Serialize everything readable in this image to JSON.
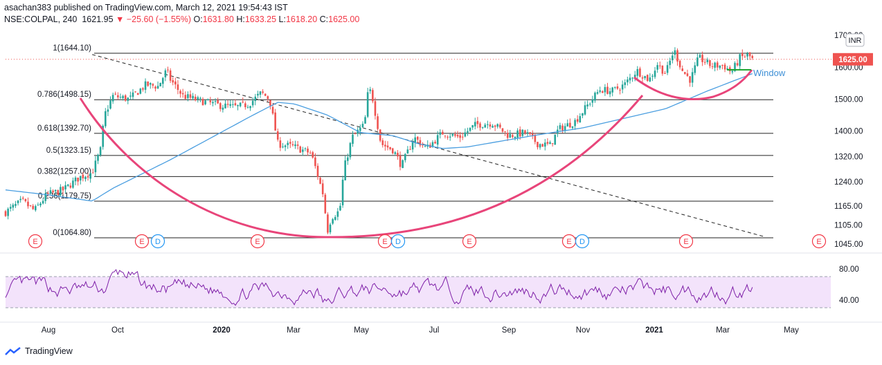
{
  "header": {
    "line1": "asachan383 published on TradingView.com, March 12, 2021 19:54:43 IST",
    "symbol": "NSE:COLPAL, 240",
    "last": "1621.95",
    "change": "−25.60 (−1.55%)",
    "o_label": "O:",
    "o_value": "1631.80",
    "h_label": "H:",
    "h_value": "1633.25",
    "l_label": "L:",
    "l_value": "1618.20",
    "c_label": "C:",
    "c_value": "1625.00"
  },
  "currency": "INR",
  "price_badge": "1625.00",
  "annotation": "Window",
  "footer": {
    "brand": "TradingView"
  },
  "colors": {
    "candle_up": "#26a69a",
    "candle_down": "#ef5350",
    "ma": "#4a9ee0",
    "arc": "#e8457a",
    "rsi": "#7e1fa8",
    "rsi_band": "#f3e3fb",
    "window": "#1fa531"
  },
  "chart_data": {
    "type": "candlestick",
    "y_axis": {
      "ticks": [
        "1700.00",
        "1600.00",
        "1500.00",
        "1400.00",
        "1320.00",
        "1240.00",
        "1165.00",
        "1105.00",
        "1045.00"
      ],
      "range": [
        1030,
        1720
      ]
    },
    "x_axis": {
      "ticks": [
        "Aug",
        "Oct",
        "2020",
        "Mar",
        "May",
        "Jul",
        "Sep",
        "Nov",
        "2021",
        "Mar",
        "May"
      ]
    },
    "fib_levels": [
      {
        "label": "1(1644.10)",
        "price": 1644.1
      },
      {
        "label": "0.786(1498.15)",
        "price": 1498.15
      },
      {
        "label": "0.618(1392.70)",
        "price": 1392.7
      },
      {
        "label": "0.5(1323.15)",
        "price": 1323.15
      },
      {
        "label": "0.382(1257.00)",
        "price": 1257.0
      },
      {
        "label": "0.236(1179.75)",
        "price": 1179.75
      },
      {
        "label": "0(1064.80)",
        "price": 1064.8
      }
    ],
    "price_path": [
      [
        0,
        1145
      ],
      [
        0.02,
        1180
      ],
      [
        0.035,
        1150
      ],
      [
        0.05,
        1200
      ],
      [
        0.07,
        1215
      ],
      [
        0.09,
        1255
      ],
      [
        0.105,
        1270
      ],
      [
        0.115,
        1340
      ],
      [
        0.12,
        1450
      ],
      [
        0.13,
        1510
      ],
      [
        0.15,
        1500
      ],
      [
        0.17,
        1545
      ],
      [
        0.185,
        1540
      ],
      [
        0.195,
        1590
      ],
      [
        0.2,
        1560
      ],
      [
        0.215,
        1510
      ],
      [
        0.235,
        1495
      ],
      [
        0.26,
        1480
      ],
      [
        0.28,
        1475
      ],
      [
        0.295,
        1485
      ],
      [
        0.31,
        1520
      ],
      [
        0.32,
        1500
      ],
      [
        0.33,
        1360
      ],
      [
        0.35,
        1350
      ],
      [
        0.37,
        1330
      ],
      [
        0.375,
        1290
      ],
      [
        0.385,
        1200
      ],
      [
        0.39,
        1085
      ],
      [
        0.395,
        1130
      ],
      [
        0.405,
        1150
      ],
      [
        0.41,
        1280
      ],
      [
        0.42,
        1380
      ],
      [
        0.435,
        1420
      ],
      [
        0.44,
        1540
      ],
      [
        0.445,
        1500
      ],
      [
        0.455,
        1360
      ],
      [
        0.47,
        1340
      ],
      [
        0.48,
        1290
      ],
      [
        0.495,
        1380
      ],
      [
        0.51,
        1345
      ],
      [
        0.53,
        1395
      ],
      [
        0.55,
        1380
      ],
      [
        0.57,
        1420
      ],
      [
        0.59,
        1425
      ],
      [
        0.61,
        1385
      ],
      [
        0.63,
        1395
      ],
      [
        0.645,
        1360
      ],
      [
        0.66,
        1355
      ],
      [
        0.67,
        1405
      ],
      [
        0.69,
        1430
      ],
      [
        0.705,
        1480
      ],
      [
        0.72,
        1530
      ],
      [
        0.735,
        1525
      ],
      [
        0.75,
        1545
      ],
      [
        0.765,
        1590
      ],
      [
        0.78,
        1560
      ],
      [
        0.79,
        1610
      ],
      [
        0.8,
        1580
      ],
      [
        0.81,
        1655
      ],
      [
        0.82,
        1590
      ],
      [
        0.83,
        1560
      ],
      [
        0.84,
        1630
      ],
      [
        0.855,
        1605
      ],
      [
        0.87,
        1605
      ],
      [
        0.88,
        1585
      ],
      [
        0.89,
        1630
      ],
      [
        0.9,
        1638
      ],
      [
        0.905,
        1625
      ]
    ],
    "ma_path": [
      [
        0,
        1215
      ],
      [
        0.05,
        1200
      ],
      [
        0.105,
        1180
      ],
      [
        0.13,
        1220
      ],
      [
        0.2,
        1310
      ],
      [
        0.25,
        1380
      ],
      [
        0.3,
        1450
      ],
      [
        0.33,
        1490
      ],
      [
        0.35,
        1485
      ],
      [
        0.39,
        1450
      ],
      [
        0.43,
        1395
      ],
      [
        0.47,
        1385
      ],
      [
        0.5,
        1360
      ],
      [
        0.53,
        1345
      ],
      [
        0.56,
        1350
      ],
      [
        0.6,
        1368
      ],
      [
        0.65,
        1390
      ],
      [
        0.7,
        1410
      ],
      [
        0.75,
        1440
      ],
      [
        0.8,
        1470
      ],
      [
        0.85,
        1525
      ],
      [
        0.9,
        1575
      ],
      [
        0.905,
        1580
      ]
    ],
    "trendline": {
      "from": [
        0.105,
        1640
      ],
      "to": [
        0.92,
        1068
      ]
    },
    "rsi": {
      "ticks": [
        "80.00",
        "40.00"
      ],
      "band": [
        70,
        30
      ],
      "range": [
        15,
        95
      ]
    }
  }
}
